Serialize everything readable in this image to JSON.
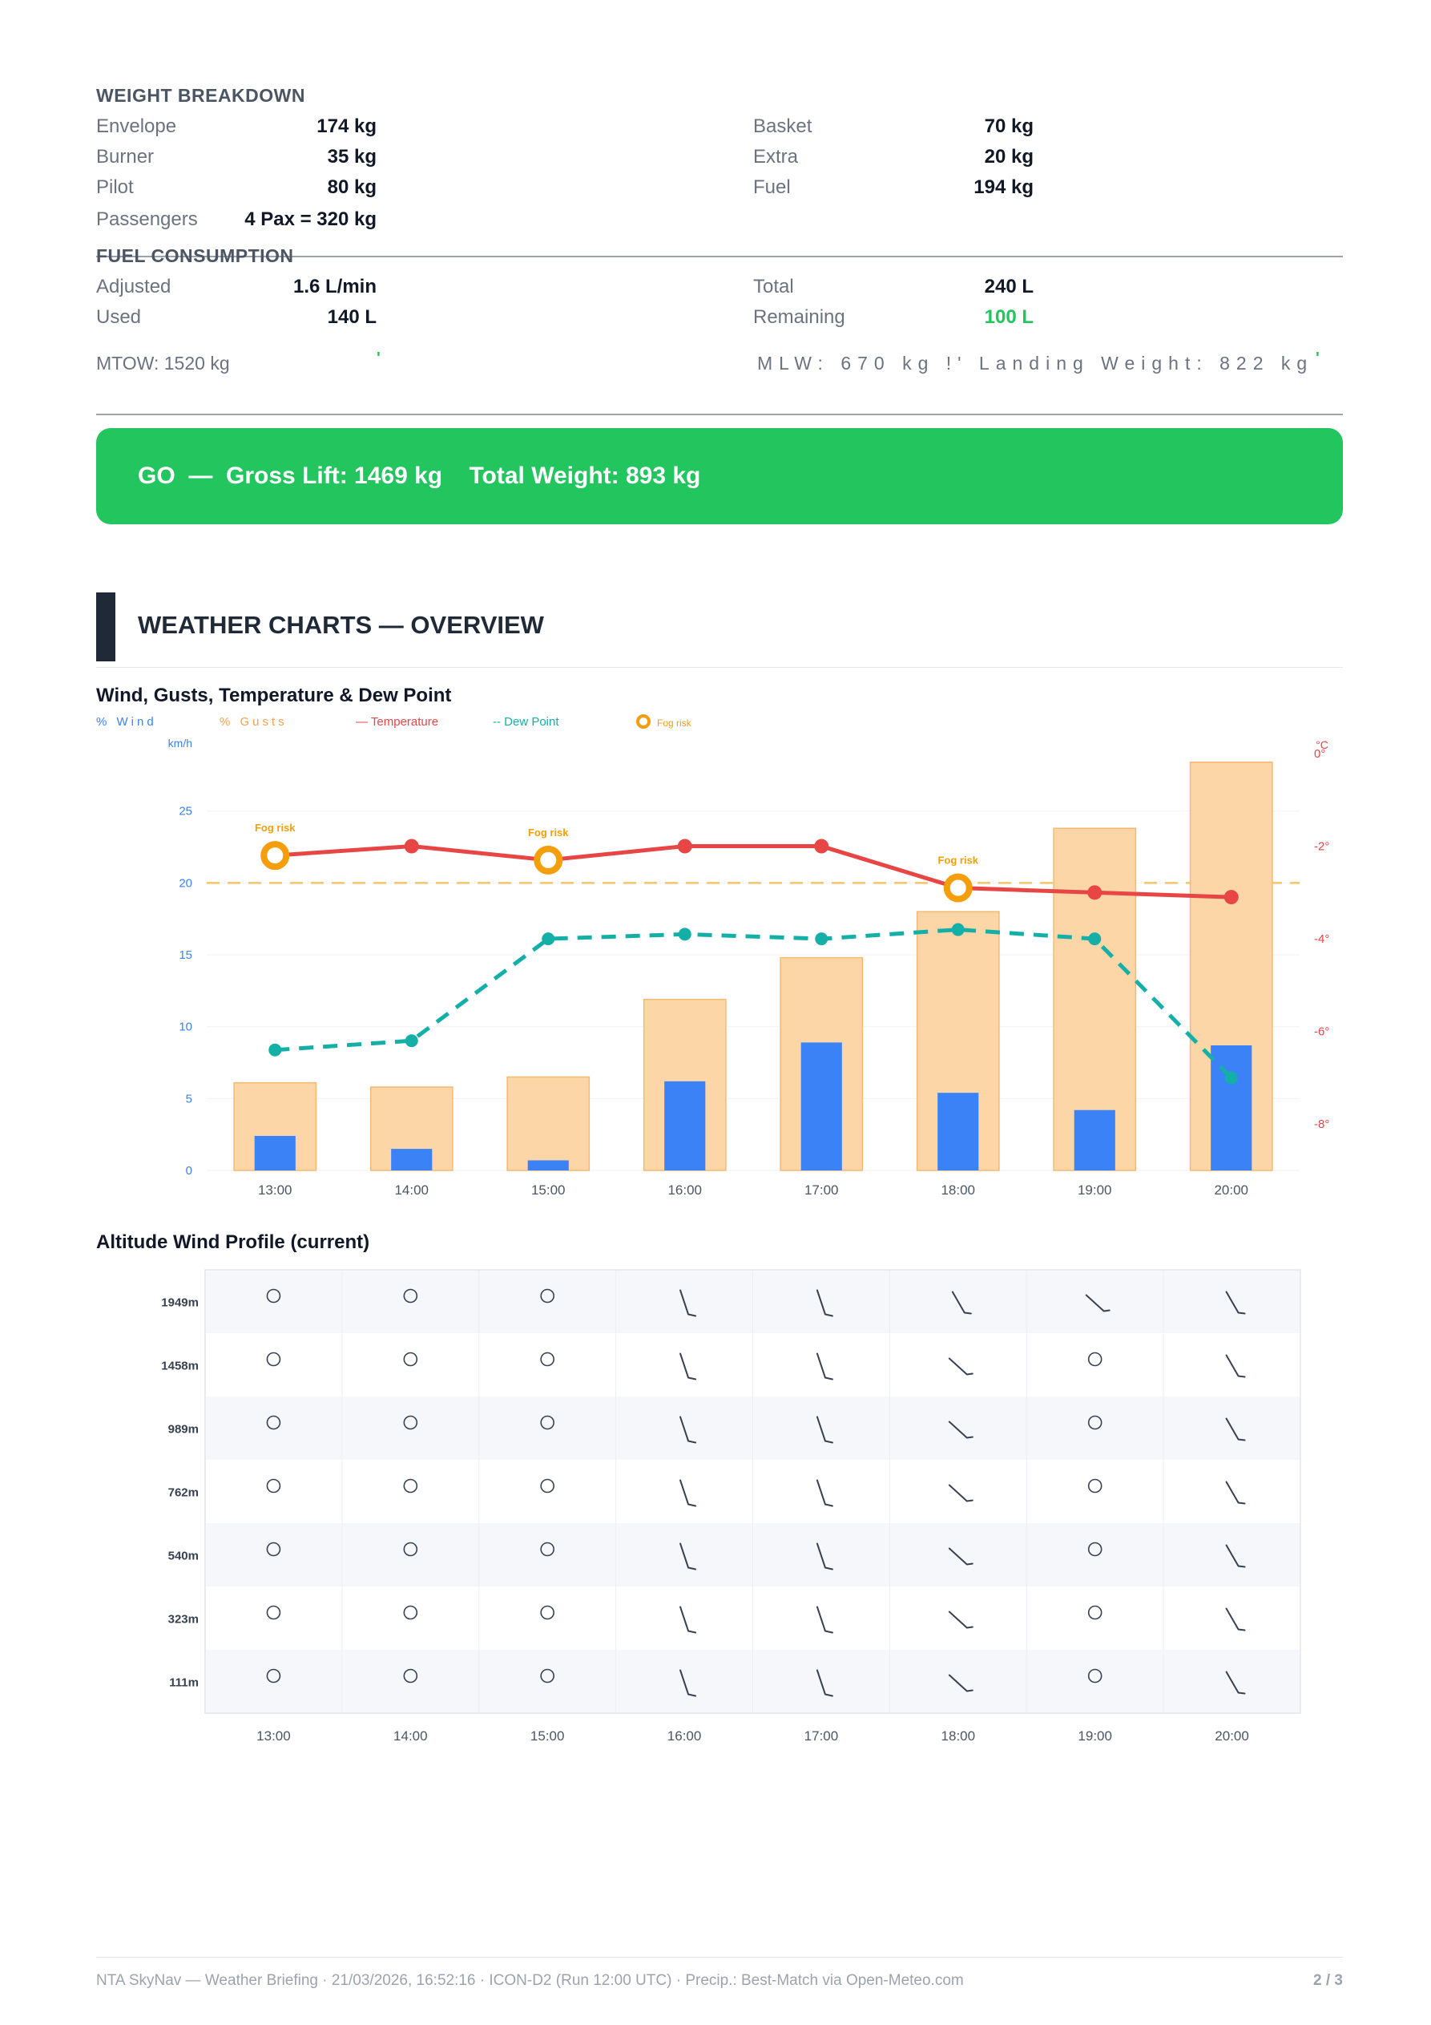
{
  "weight": {
    "title": "WEIGHT BREAKDOWN",
    "left": [
      {
        "label": "Envelope",
        "value": "174 kg"
      },
      {
        "label": "Burner",
        "value": "35 kg"
      },
      {
        "label": "Pilot",
        "value": "80 kg"
      },
      {
        "label": "Passengers",
        "value": "4 Pax = 320 kg"
      }
    ],
    "right": [
      {
        "label": "Basket",
        "value": "70 kg"
      },
      {
        "label": "Extra",
        "value": "20 kg"
      },
      {
        "label": "Fuel",
        "value": "194 kg"
      }
    ]
  },
  "fuel": {
    "title": "FUEL CONSUMPTION",
    "left": [
      {
        "label": "Adjusted",
        "value": "1.6 L/min"
      },
      {
        "label": "Used",
        "value": "140 L"
      }
    ],
    "right": [
      {
        "label": "Total",
        "value": "240 L"
      },
      {
        "label": "Remaining",
        "value": "100 L",
        "color": "#22c55e"
      }
    ]
  },
  "limits": {
    "mtow": "MTOW: 1520 kg",
    "tick": "'",
    "mlw": "MLW: 670 kg !'  Landing Weight: 822 kg",
    "tick_color": "#22c55e"
  },
  "banner": {
    "status": "GO",
    "sep": "—",
    "gross_lift": "Gross Lift: 1469 kg",
    "total_weight": "Total Weight: 893 kg",
    "color": "#22c55e"
  },
  "section_title": "WEATHER CHARTS — OVERVIEW",
  "chart_data": [
    {
      "type": "bar",
      "title": "Wind, Gusts, Temperature & Dew Point",
      "categories": [
        "13:00",
        "14:00",
        "15:00",
        "16:00",
        "17:00",
        "18:00",
        "19:00",
        "20:00"
      ],
      "legend": {
        "wind": "%  Wind",
        "gusts": "%  Gusts",
        "temperature": "— Temperature",
        "dew_point": "-- Dew Point",
        "fog": "Fog risk",
        "placement": "top-left"
      },
      "y_left": {
        "label": "km/h",
        "ticks": [
          0,
          5,
          10,
          15,
          20,
          25
        ],
        "range": [
          0,
          29
        ]
      },
      "y_right": {
        "label": "°C",
        "ticks": [
          "0°",
          "-2°",
          "-4°",
          "-6°",
          "-8°"
        ],
        "tick_values": [
          0,
          -2,
          -4,
          -6,
          -8
        ],
        "range": [
          -9,
          0
        ]
      },
      "threshold": {
        "value": 20,
        "color": "#f6c36b"
      },
      "series": [
        {
          "name": "Wind",
          "type": "bar",
          "color": "#3b82f6",
          "values": [
            2.4,
            1.5,
            0.7,
            6.2,
            8.9,
            5.4,
            4.2,
            8.7
          ]
        },
        {
          "name": "Gusts",
          "type": "bar",
          "color": "#fdd6a8",
          "values": [
            6.1,
            5.8,
            6.5,
            11.9,
            14.8,
            18.0,
            23.8,
            28.4
          ]
        },
        {
          "name": "Temperature",
          "type": "line",
          "color": "#e84545",
          "values": [
            -2.2,
            -2.0,
            -2.3,
            -2.0,
            -2.0,
            -2.9,
            -3.0,
            -3.1
          ]
        },
        {
          "name": "Dew Point",
          "type": "line",
          "dashed": true,
          "color": "#14b0a8",
          "values": [
            -6.4,
            -6.2,
            -4.0,
            -3.9,
            -4.0,
            -3.8,
            -4.0,
            -7.0
          ]
        }
      ],
      "fog_risk": {
        "label": "Fog risk",
        "indices": [
          0,
          2,
          5
        ],
        "color": "#f59e0b"
      },
      "grid": true
    },
    {
      "type": "table",
      "title": "Altitude Wind Profile (current)",
      "altitudes": [
        "1949m",
        "1458m",
        "989m",
        "762m",
        "540m",
        "323m",
        "111m"
      ],
      "columns": [
        "13:00",
        "14:00",
        "15:00",
        "16:00",
        "17:00",
        "18:00",
        "19:00",
        "20:00"
      ],
      "cells": [
        [
          "calm",
          "calm",
          "calm",
          "barb-steep",
          "barb-steep",
          "barb-mid",
          "barb-shallow",
          "barb-mid"
        ],
        [
          "calm",
          "calm",
          "calm",
          "barb-steep",
          "barb-steep",
          "barb-shallow",
          "calm",
          "barb-mid"
        ],
        [
          "calm",
          "calm",
          "calm",
          "barb-steep",
          "barb-steep",
          "barb-shallow",
          "calm",
          "barb-mid"
        ],
        [
          "calm",
          "calm",
          "calm",
          "barb-steep",
          "barb-steep",
          "barb-shallow",
          "calm",
          "barb-mid"
        ],
        [
          "calm",
          "calm",
          "calm",
          "barb-steep",
          "barb-steep",
          "barb-shallow",
          "calm",
          "barb-mid"
        ],
        [
          "calm",
          "calm",
          "calm",
          "barb-steep",
          "barb-steep",
          "barb-shallow",
          "calm",
          "barb-mid"
        ],
        [
          "calm",
          "calm",
          "calm",
          "barb-steep",
          "barb-steep",
          "barb-shallow",
          "calm",
          "barb-mid"
        ]
      ]
    }
  ],
  "footer": {
    "text": "NTA SkyNav — Weather Briefing  ·  21/03/2026, 16:52:16  ·  ICON-D2 (Run 12:00 UTC)  ·  Precip.: Best-Match via Open-Meteo.com",
    "page": "2 / 3"
  }
}
